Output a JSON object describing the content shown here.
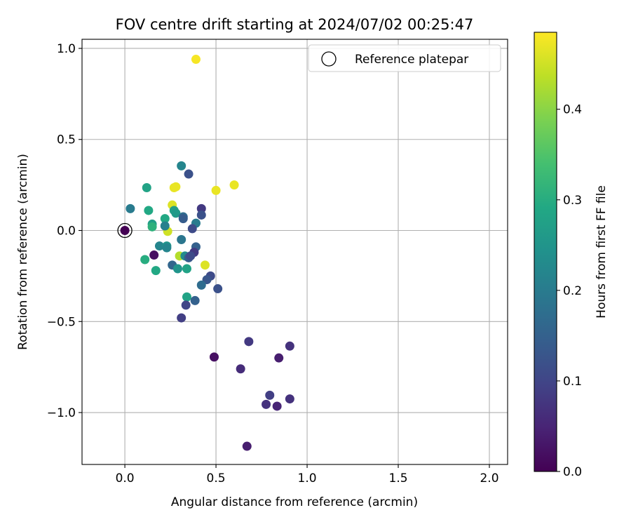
{
  "chart_data": {
    "type": "scatter",
    "title": "FOV centre drift starting at 2024/07/02 00:25:47",
    "xlabel": "Angular distance from reference (arcmin)",
    "ylabel": "Rotation from reference (arcmin)",
    "xlim": [
      -0.235,
      2.1
    ],
    "ylim": [
      -1.285,
      1.05
    ],
    "xticks": [
      0.0,
      0.5,
      1.0,
      1.5,
      2.0
    ],
    "xtick_labels": [
      "0.0",
      "0.5",
      "1.0",
      "1.5",
      "2.0"
    ],
    "yticks": [
      -1.0,
      -0.5,
      0.0,
      0.5,
      1.0
    ],
    "ytick_labels": [
      "−1.0",
      "−0.5",
      "0.0",
      "0.5",
      "1.0"
    ],
    "grid": true,
    "legend": {
      "location": "top-right",
      "entries": [
        {
          "label": "Reference platepar",
          "marker": "open-circle"
        }
      ]
    },
    "colorbar": {
      "label": "Hours from first FF file",
      "range": [
        0.0,
        0.485
      ],
      "colormap": "viridis",
      "ticks": [
        0.0,
        0.1,
        0.2,
        0.3,
        0.4
      ],
      "tick_labels": [
        "0.0",
        "0.1",
        "0.2",
        "0.3",
        "0.4"
      ]
    },
    "reference_point": {
      "x": 0.0,
      "y": 0.0,
      "c": 0.0
    },
    "points": [
      {
        "x": 0.39,
        "y": 0.94,
        "c": 0.48
      },
      {
        "x": 0.6,
        "y": 0.25,
        "c": 0.47
      },
      {
        "x": 0.5,
        "y": 0.22,
        "c": 0.47
      },
      {
        "x": 0.28,
        "y": 0.24,
        "c": 0.47
      },
      {
        "x": 0.27,
        "y": 0.235,
        "c": 0.47
      },
      {
        "x": 0.26,
        "y": 0.14,
        "c": 0.46
      },
      {
        "x": 0.235,
        "y": -0.005,
        "c": 0.45
      },
      {
        "x": 0.44,
        "y": -0.19,
        "c": 0.46
      },
      {
        "x": 0.3,
        "y": -0.14,
        "c": 0.43
      },
      {
        "x": 0.31,
        "y": 0.355,
        "c": 0.22
      },
      {
        "x": 0.35,
        "y": 0.31,
        "c": 0.12
      },
      {
        "x": 0.03,
        "y": 0.12,
        "c": 0.2
      },
      {
        "x": 0.12,
        "y": 0.235,
        "c": 0.28
      },
      {
        "x": 0.13,
        "y": 0.11,
        "c": 0.29
      },
      {
        "x": 0.15,
        "y": 0.035,
        "c": 0.27
      },
      {
        "x": 0.15,
        "y": 0.02,
        "c": 0.31
      },
      {
        "x": 0.22,
        "y": 0.065,
        "c": 0.29
      },
      {
        "x": 0.27,
        "y": 0.11,
        "c": 0.27
      },
      {
        "x": 0.28,
        "y": 0.095,
        "c": 0.26
      },
      {
        "x": 0.22,
        "y": 0.025,
        "c": 0.21
      },
      {
        "x": 0.42,
        "y": 0.12,
        "c": 0.08
      },
      {
        "x": 0.42,
        "y": 0.085,
        "c": 0.12
      },
      {
        "x": 0.32,
        "y": 0.075,
        "c": 0.17
      },
      {
        "x": 0.32,
        "y": 0.065,
        "c": 0.14
      },
      {
        "x": 0.39,
        "y": 0.04,
        "c": 0.2
      },
      {
        "x": 0.37,
        "y": 0.01,
        "c": 0.11
      },
      {
        "x": 0.31,
        "y": -0.05,
        "c": 0.19
      },
      {
        "x": 0.19,
        "y": -0.085,
        "c": 0.22
      },
      {
        "x": 0.23,
        "y": -0.085,
        "c": 0.25
      },
      {
        "x": 0.23,
        "y": -0.095,
        "c": 0.22
      },
      {
        "x": 0.16,
        "y": -0.135,
        "c": 0.02
      },
      {
        "x": 0.11,
        "y": -0.16,
        "c": 0.3
      },
      {
        "x": 0.33,
        "y": -0.14,
        "c": 0.23
      },
      {
        "x": 0.39,
        "y": -0.09,
        "c": 0.15
      },
      {
        "x": 0.38,
        "y": -0.12,
        "c": 0.08
      },
      {
        "x": 0.35,
        "y": -0.15,
        "c": 0.14
      },
      {
        "x": 0.36,
        "y": -0.14,
        "c": 0.11
      },
      {
        "x": 0.26,
        "y": -0.19,
        "c": 0.16
      },
      {
        "x": 0.29,
        "y": -0.21,
        "c": 0.25
      },
      {
        "x": 0.34,
        "y": -0.21,
        "c": 0.28
      },
      {
        "x": 0.17,
        "y": -0.22,
        "c": 0.29
      },
      {
        "x": 0.47,
        "y": -0.25,
        "c": 0.11
      },
      {
        "x": 0.45,
        "y": -0.27,
        "c": 0.13
      },
      {
        "x": 0.42,
        "y": -0.3,
        "c": 0.17
      },
      {
        "x": 0.51,
        "y": -0.32,
        "c": 0.12
      },
      {
        "x": 0.34,
        "y": -0.365,
        "c": 0.28
      },
      {
        "x": 0.385,
        "y": -0.385,
        "c": 0.15
      },
      {
        "x": 0.335,
        "y": -0.41,
        "c": 0.1
      },
      {
        "x": 0.31,
        "y": -0.48,
        "c": 0.09
      },
      {
        "x": 0.68,
        "y": -0.61,
        "c": 0.08
      },
      {
        "x": 0.905,
        "y": -0.635,
        "c": 0.07
      },
      {
        "x": 0.49,
        "y": -0.695,
        "c": 0.02
      },
      {
        "x": 0.845,
        "y": -0.7,
        "c": 0.04
      },
      {
        "x": 0.635,
        "y": -0.76,
        "c": 0.06
      },
      {
        "x": 0.795,
        "y": -0.905,
        "c": 0.09
      },
      {
        "x": 0.905,
        "y": -0.925,
        "c": 0.07
      },
      {
        "x": 0.775,
        "y": -0.955,
        "c": 0.07
      },
      {
        "x": 0.835,
        "y": -0.965,
        "c": 0.05
      },
      {
        "x": 0.67,
        "y": -1.185,
        "c": 0.04
      }
    ]
  }
}
